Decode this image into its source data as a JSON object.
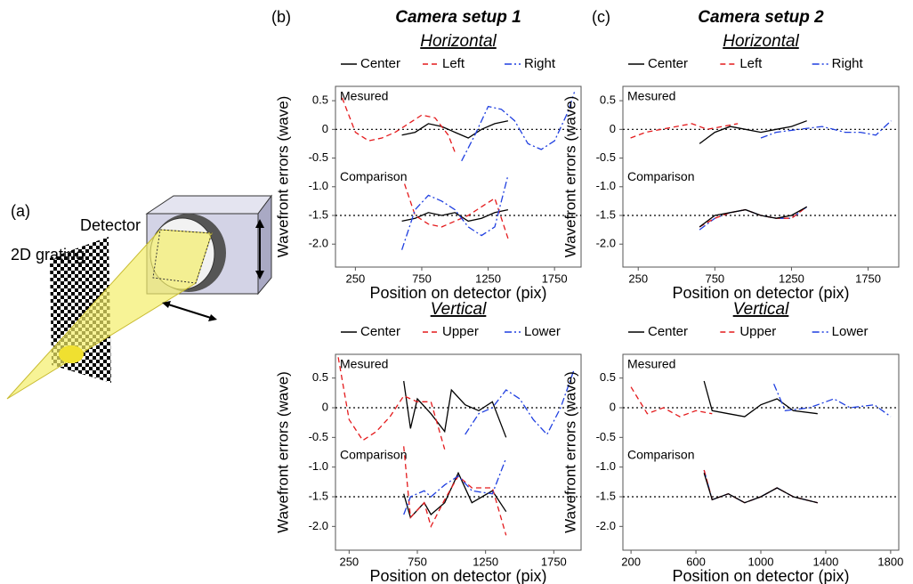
{
  "figure": {
    "panel_labels": [
      "(a)",
      "(b)",
      "(c)"
    ],
    "column_titles": [
      "Camera setup 1",
      "Camera setup 2"
    ],
    "diagram": {
      "detector": "Detector",
      "grating": "2D grating"
    }
  },
  "chart_data": [
    {
      "type": "line",
      "title": "Horizontal",
      "xlabel": "Position on detector (pix)",
      "ylabel": "Wavefront errors (wave)",
      "annotations": [
        "Mesured",
        "Comparison"
      ],
      "xlim": [
        100,
        1950
      ],
      "ylim": [
        -2.4,
        0.75
      ],
      "xticks": [
        250,
        750,
        1250,
        1750
      ],
      "yticks": [
        0.5,
        0,
        -0.5,
        {
          "value": -1,
          "label": "-1.0"
        },
        -1.5,
        {
          "value": -2,
          "label": "-2.0"
        }
      ],
      "hlines": [
        0,
        -1.5
      ],
      "series": [
        {
          "name": "Center",
          "color": "#000000",
          "linestyle": "solid",
          "x": [
            600,
            700,
            800,
            900,
            1000,
            1100,
            1200,
            1300,
            1400
          ],
          "values": [
            -0.1,
            -0.05,
            0.1,
            0.05,
            -0.05,
            -0.15,
            0.0,
            0.1,
            0.15
          ]
        },
        {
          "name": "Left",
          "color": "#e41a1c",
          "linestyle": "dashed",
          "x": [
            150,
            250,
            350,
            450,
            550,
            650,
            750,
            850,
            950,
            1000
          ],
          "values": [
            0.55,
            -0.05,
            -0.2,
            -0.15,
            -0.05,
            0.1,
            0.25,
            0.2,
            -0.1,
            -0.4
          ]
        },
        {
          "name": "Right",
          "color": "#1f3fe0",
          "linestyle": "dashdot",
          "x": [
            1050,
            1150,
            1250,
            1350,
            1450,
            1550,
            1650,
            1750,
            1850,
            1900
          ],
          "values": [
            -0.55,
            -0.1,
            0.4,
            0.35,
            0.15,
            -0.25,
            -0.35,
            -0.2,
            0.3,
            0.65
          ]
        }
      ],
      "comparison_series": [
        {
          "color": "#000000",
          "linestyle": "solid",
          "x": [
            600,
            700,
            800,
            900,
            1000,
            1100,
            1200,
            1300,
            1400
          ],
          "values": [
            -1.6,
            -1.55,
            -1.45,
            -1.5,
            -1.45,
            -1.6,
            -1.55,
            -1.45,
            -1.4
          ]
        },
        {
          "color": "#e41a1c",
          "linestyle": "dashed",
          "x": [
            620,
            700,
            800,
            900,
            1000,
            1100,
            1200,
            1300,
            1400
          ],
          "values": [
            -0.95,
            -1.5,
            -1.65,
            -1.7,
            -1.6,
            -1.5,
            -1.35,
            -1.2,
            -1.9
          ]
        },
        {
          "color": "#1f3fe0",
          "linestyle": "dashdot",
          "x": [
            600,
            700,
            800,
            900,
            1000,
            1100,
            1200,
            1300,
            1400
          ],
          "values": [
            -2.1,
            -1.4,
            -1.15,
            -1.25,
            -1.4,
            -1.7,
            -1.85,
            -1.7,
            -0.8
          ]
        }
      ]
    },
    {
      "type": "line",
      "title": "Vertical",
      "xlabel": "Position on detector (pix)",
      "ylabel": "Wavefront errors (wave)",
      "annotations": [
        "Mesured",
        "Comparison"
      ],
      "xlim": [
        150,
        1950
      ],
      "ylim": [
        -2.4,
        0.9
      ],
      "xticks": [
        250,
        750,
        1250,
        1750
      ],
      "yticks": [
        0.5,
        0,
        -0.5,
        {
          "value": -1,
          "label": "-1.0"
        },
        -1.5,
        {
          "value": -2,
          "label": "-2.0"
        }
      ],
      "hlines": [
        0,
        -1.5
      ],
      "series": [
        {
          "name": "Center",
          "color": "#000000",
          "linestyle": "solid",
          "x": [
            650,
            700,
            750,
            850,
            950,
            1000,
            1100,
            1200,
            1300,
            1400
          ],
          "values": [
            0.45,
            -0.35,
            0.15,
            -0.1,
            -0.4,
            0.3,
            0.05,
            -0.05,
            0.1,
            -0.5
          ]
        },
        {
          "name": "Upper",
          "color": "#e41a1c",
          "linestyle": "dashed",
          "x": [
            170,
            250,
            350,
            450,
            550,
            650,
            750,
            850,
            900,
            950
          ],
          "values": [
            0.85,
            -0.2,
            -0.55,
            -0.4,
            -0.15,
            0.2,
            0.1,
            0.1,
            -0.3,
            -0.7
          ]
        },
        {
          "name": "Lower",
          "color": "#1f3fe0",
          "linestyle": "dashdot",
          "x": [
            1100,
            1200,
            1300,
            1400,
            1500,
            1600,
            1700,
            1800,
            1900
          ],
          "values": [
            -0.45,
            -0.1,
            0.0,
            0.3,
            0.15,
            -0.2,
            -0.45,
            0.0,
            0.65
          ]
        }
      ],
      "comparison_series": [
        {
          "color": "#000000",
          "linestyle": "solid",
          "x": [
            650,
            700,
            800,
            850,
            950,
            1050,
            1150,
            1300,
            1400
          ],
          "values": [
            -1.45,
            -1.85,
            -1.6,
            -1.8,
            -1.6,
            -1.1,
            -1.6,
            -1.4,
            -1.75
          ]
        },
        {
          "color": "#e41a1c",
          "linestyle": "dashed",
          "x": [
            650,
            700,
            800,
            850,
            950,
            1050,
            1150,
            1300,
            1400
          ],
          "values": [
            -0.65,
            -1.85,
            -1.6,
            -2.0,
            -1.55,
            -1.15,
            -1.35,
            -1.35,
            -2.15
          ]
        },
        {
          "color": "#1f3fe0",
          "linestyle": "dashdot",
          "x": [
            650,
            700,
            800,
            850,
            950,
            1050,
            1150,
            1300,
            1400
          ],
          "values": [
            -1.8,
            -1.5,
            -1.4,
            -1.5,
            -1.3,
            -1.15,
            -1.4,
            -1.45,
            -0.85
          ]
        }
      ]
    },
    {
      "type": "line",
      "title": "Horizontal",
      "xlabel": "Position on detector (pix)",
      "ylabel": "Wavefront errors (wave)",
      "annotations": [
        "Mesured",
        "Comparison"
      ],
      "xlim": [
        150,
        1950
      ],
      "ylim": [
        -2.4,
        0.75
      ],
      "xticks": [
        250,
        750,
        1250,
        1750
      ],
      "yticks": [
        0.5,
        0,
        -0.5,
        {
          "value": -1,
          "label": "-1.0"
        },
        -1.5,
        {
          "value": -2,
          "label": "-2.0"
        }
      ],
      "hlines": [
        0,
        -1.5
      ],
      "series": [
        {
          "name": "Center",
          "color": "#000000",
          "linestyle": "solid",
          "x": [
            650,
            750,
            850,
            950,
            1050,
            1150,
            1250,
            1350
          ],
          "values": [
            -0.25,
            -0.05,
            0.05,
            0.0,
            -0.05,
            0.0,
            0.05,
            0.15
          ]
        },
        {
          "name": "Left",
          "color": "#e41a1c",
          "linestyle": "dashed",
          "x": [
            200,
            300,
            400,
            500,
            600,
            700,
            800,
            900
          ],
          "values": [
            -0.15,
            -0.05,
            0.0,
            0.05,
            0.1,
            0.0,
            0.05,
            0.1
          ]
        },
        {
          "name": "Right",
          "color": "#1f3fe0",
          "linestyle": "dashdot",
          "x": [
            1050,
            1150,
            1300,
            1450,
            1600,
            1700,
            1800,
            1900
          ],
          "values": [
            -0.15,
            -0.05,
            0.0,
            0.05,
            -0.05,
            -0.05,
            -0.1,
            0.15
          ]
        }
      ],
      "comparison_series": [
        {
          "color": "#1f3fe0",
          "linestyle": "dashdot",
          "x": [
            650,
            750,
            850,
            950,
            1050,
            1150,
            1250,
            1350
          ],
          "values": [
            -1.75,
            -1.55,
            -1.45,
            -1.4,
            -1.5,
            -1.55,
            -1.55,
            -1.35
          ]
        },
        {
          "color": "#e41a1c",
          "linestyle": "dashed",
          "x": [
            650,
            750,
            850,
            950,
            1050,
            1150,
            1250,
            1350
          ],
          "values": [
            -1.7,
            -1.55,
            -1.45,
            -1.4,
            -1.5,
            -1.55,
            -1.55,
            -1.35
          ]
        },
        {
          "color": "#000000",
          "linestyle": "solid",
          "x": [
            650,
            750,
            850,
            950,
            1050,
            1150,
            1250,
            1350
          ],
          "values": [
            -1.7,
            -1.5,
            -1.45,
            -1.4,
            -1.5,
            -1.55,
            -1.5,
            -1.35
          ]
        }
      ]
    },
    {
      "type": "line",
      "title": "Vertical",
      "xlabel": "Position on detector (pix)",
      "ylabel": "Wavefront errors (wave)",
      "annotations": [
        "Mesured",
        "Comparison"
      ],
      "xlim": [
        150,
        1850
      ],
      "ylim": [
        -2.4,
        0.9
      ],
      "xticks": [
        200,
        600,
        1000,
        1400,
        1800
      ],
      "yticks": [
        0.5,
        0,
        -0.5,
        {
          "value": -1,
          "label": "-1.0"
        },
        -1.5,
        {
          "value": -2,
          "label": "-2.0"
        }
      ],
      "hlines": [
        0,
        -1.5
      ],
      "series": [
        {
          "name": "Center",
          "color": "#000000",
          "linestyle": "solid",
          "x": [
            650,
            700,
            800,
            900,
            1000,
            1100,
            1200,
            1350
          ],
          "values": [
            0.45,
            -0.05,
            -0.1,
            -0.15,
            0.05,
            0.15,
            -0.05,
            -0.1
          ]
        },
        {
          "name": "Upper",
          "color": "#e41a1c",
          "linestyle": "dashed",
          "x": [
            200,
            300,
            400,
            500,
            600,
            700
          ],
          "values": [
            0.35,
            -0.1,
            0.0,
            -0.15,
            -0.05,
            -0.1
          ]
        },
        {
          "name": "Lower",
          "color": "#1f3fe0",
          "linestyle": "dashdot",
          "x": [
            1080,
            1150,
            1300,
            1450,
            1550,
            1700,
            1800
          ],
          "values": [
            0.4,
            -0.05,
            0.0,
            0.15,
            0.0,
            0.05,
            -0.15
          ]
        }
      ],
      "comparison_series": [
        {
          "color": "#1f3fe0",
          "linestyle": "dashdot",
          "x": [
            650,
            700,
            800,
            900,
            1000,
            1100,
            1200,
            1350
          ],
          "values": [
            -1.05,
            -1.55,
            -1.45,
            -1.6,
            -1.5,
            -1.35,
            -1.5,
            -1.6
          ]
        },
        {
          "color": "#e41a1c",
          "linestyle": "dashed",
          "x": [
            650,
            700,
            800,
            900,
            1000,
            1100,
            1200,
            1350
          ],
          "values": [
            -1.05,
            -1.55,
            -1.45,
            -1.6,
            -1.5,
            -1.35,
            -1.5,
            -1.6
          ]
        },
        {
          "color": "#000000",
          "linestyle": "solid",
          "x": [
            650,
            700,
            800,
            900,
            1000,
            1100,
            1200,
            1350
          ],
          "values": [
            -1.1,
            -1.55,
            -1.45,
            -1.6,
            -1.5,
            -1.35,
            -1.5,
            -1.6
          ]
        }
      ]
    }
  ]
}
